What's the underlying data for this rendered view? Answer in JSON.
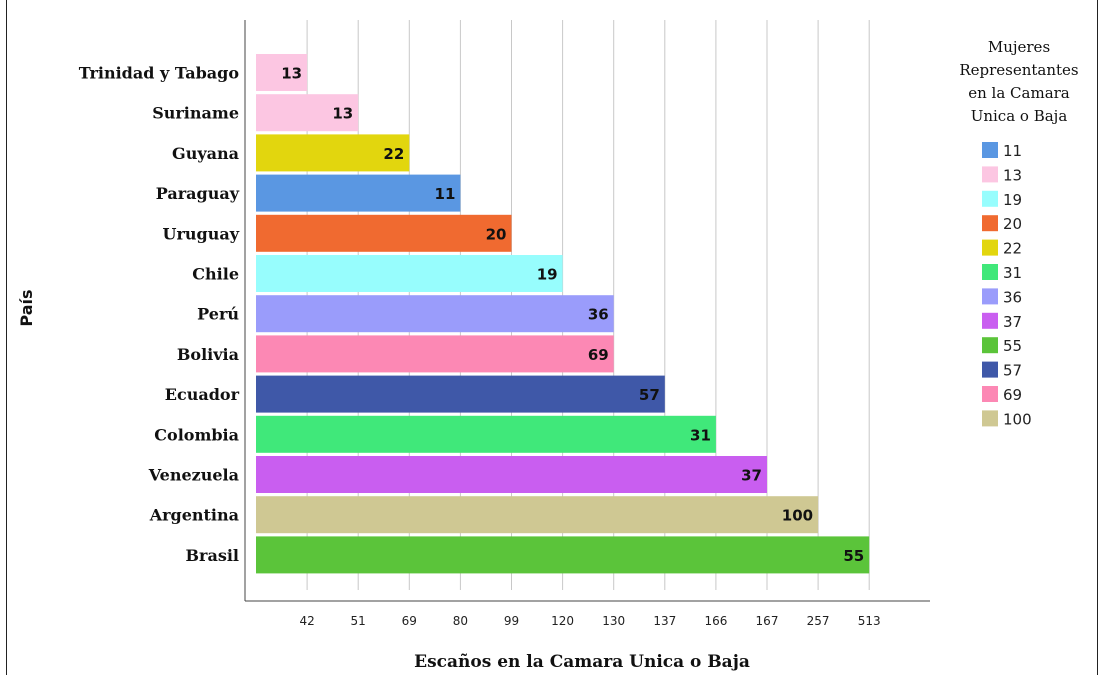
{
  "chart_data": {
    "type": "bar",
    "orientation": "horizontal",
    "title": "",
    "xlabel": "Escaños en la Camara Unica o Baja",
    "ylabel": "País",
    "categories": [
      "Trinidad y Tabago",
      "Suriname",
      "Guyana",
      "Paraguay",
      "Uruguay",
      "Chile",
      "Perú",
      "Bolivia",
      "Ecuador",
      "Colombia",
      "Venezuela",
      "Argentina",
      "Brasil"
    ],
    "x_ticks": [
      "42",
      "51",
      "69",
      "80",
      "99",
      "120",
      "130",
      "130",
      "137",
      "166",
      "167",
      "257",
      "513"
    ],
    "x_tick_labels_visible": [
      "42",
      "51",
      "69",
      "80",
      "99",
      "120",
      "130",
      "137",
      "166",
      "167",
      "257",
      "513"
    ],
    "seats": [
      42,
      51,
      69,
      80,
      99,
      120,
      130,
      130,
      137,
      166,
      167,
      257,
      513
    ],
    "women": [
      13,
      13,
      22,
      11,
      20,
      19,
      36,
      69,
      57,
      31,
      37,
      100,
      55
    ],
    "legend": {
      "title": "Mujeres Representantes en la Camara Unica o Baja",
      "title_lines": [
        "Mujeres",
        "Representantes",
        "en la Camara",
        "Unica o Baja"
      ],
      "placement": "right",
      "entries": [
        {
          "label": "11",
          "color": "#5a97e2"
        },
        {
          "label": "13",
          "color": "#fcc6e2"
        },
        {
          "label": "19",
          "color": "#97fdfd"
        },
        {
          "label": "20",
          "color": "#f06a30"
        },
        {
          "label": "22",
          "color": "#e2d60e"
        },
        {
          "label": "31",
          "color": "#40e87a"
        },
        {
          "label": "36",
          "color": "#9a9cfb"
        },
        {
          "label": "37",
          "color": "#c95ef0"
        },
        {
          "label": "55",
          "color": "#5bc43a"
        },
        {
          "label": "57",
          "color": "#3f58a8"
        },
        {
          "label": "69",
          "color": "#fc88b4"
        },
        {
          "label": "100",
          "color": "#cfc893"
        }
      ]
    },
    "grid": true
  }
}
